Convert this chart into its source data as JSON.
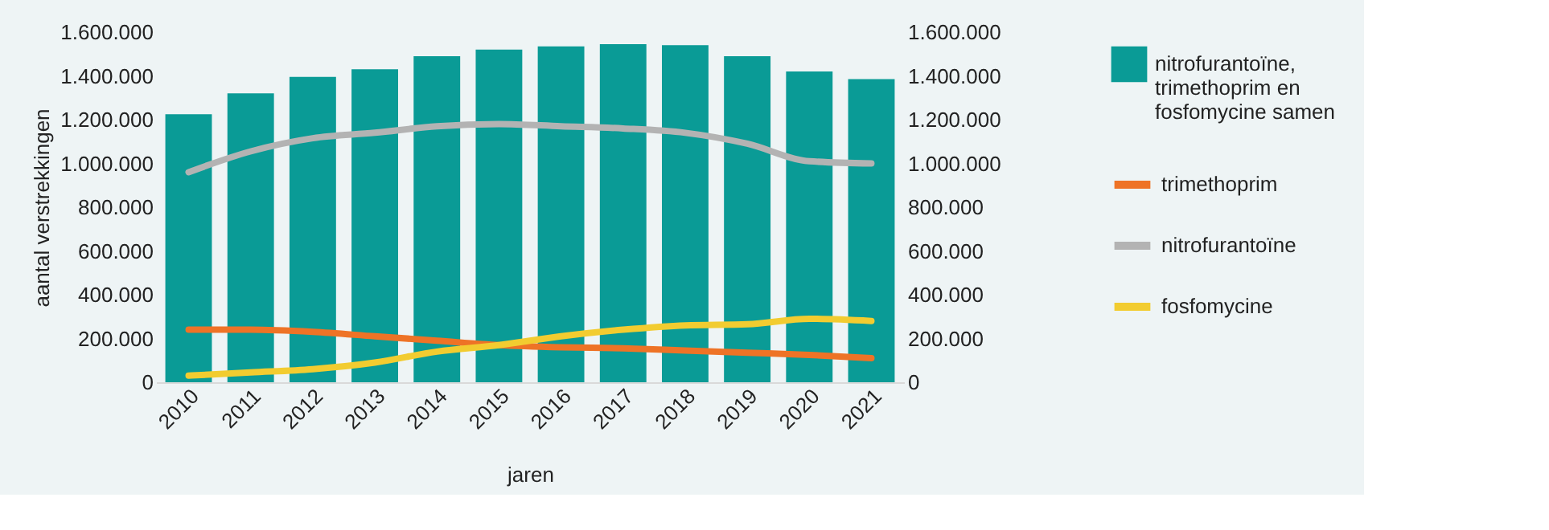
{
  "chart_data": {
    "type": "bar",
    "xlabel": "jaren",
    "ylabel": "aantal verstrekkingen",
    "categories": [
      "2010",
      "2011",
      "2012",
      "2013",
      "2014",
      "2015",
      "2016",
      "2017",
      "2018",
      "2019",
      "2020",
      "2021"
    ],
    "series": [
      {
        "name": "nitrofurantoïne, trimethoprim en fosfomycine samen",
        "color": "#0a9b96",
        "values": [
          1225000,
          1320000,
          1395000,
          1430000,
          1490000,
          1520000,
          1535000,
          1545000,
          1540000,
          1490000,
          1420000,
          1385000
        ]
      },
      {
        "name": "trimethoprim",
        "type": "line",
        "axis": "y2",
        "color": "#ee7326",
        "values": [
          240000,
          240000,
          230000,
          210000,
          190000,
          170000,
          160000,
          155000,
          145000,
          135000,
          125000,
          110000
        ]
      },
      {
        "name": "nitrofurantoïne",
        "type": "line",
        "axis": "y2",
        "color": "#b3b3b3",
        "values": [
          960000,
          1055000,
          1115000,
          1140000,
          1170000,
          1180000,
          1170000,
          1160000,
          1140000,
          1090000,
          1010000,
          1000000
        ]
      },
      {
        "name": "fosfomycine",
        "type": "line",
        "axis": "y2",
        "color": "#f2cc30",
        "values": [
          30000,
          45000,
          60000,
          90000,
          140000,
          170000,
          210000,
          240000,
          260000,
          265000,
          290000,
          280000
        ]
      }
    ],
    "ylim": [
      0,
      1600000
    ],
    "yticks": [
      0,
      {
        "value": 200000,
        "label": "200.000"
      },
      {
        "value": 400000,
        "label": "400.000"
      },
      {
        "value": 600000,
        "label": "600.000"
      },
      {
        "value": 800000,
        "label": "800.000"
      },
      {
        "value": 1000000,
        "label": "1.000.000"
      },
      {
        "value": 1200000,
        "label": "1.200.000"
      },
      {
        "value": 1400000,
        "label": "1.400.000"
      },
      {
        "value": 1600000,
        "label": "1.600.000"
      }
    ],
    "y2lim": [
      0,
      1600000
    ],
    "y2ticks": [
      0,
      {
        "value": 200000,
        "label": "200.000"
      },
      {
        "value": 400000,
        "label": "400.000"
      },
      {
        "value": 600000,
        "label": "600.000"
      },
      {
        "value": 800000,
        "label": "800.000"
      },
      {
        "value": 1000000,
        "label": "1.000.000"
      },
      {
        "value": 1200000,
        "label": "1.200.000"
      },
      {
        "value": 1400000,
        "label": "1.400.000"
      },
      {
        "value": 1600000,
        "label": "1.600.000"
      }
    ],
    "grid": false,
    "legend": "right",
    "line_style": "solid",
    "marker": "none"
  }
}
